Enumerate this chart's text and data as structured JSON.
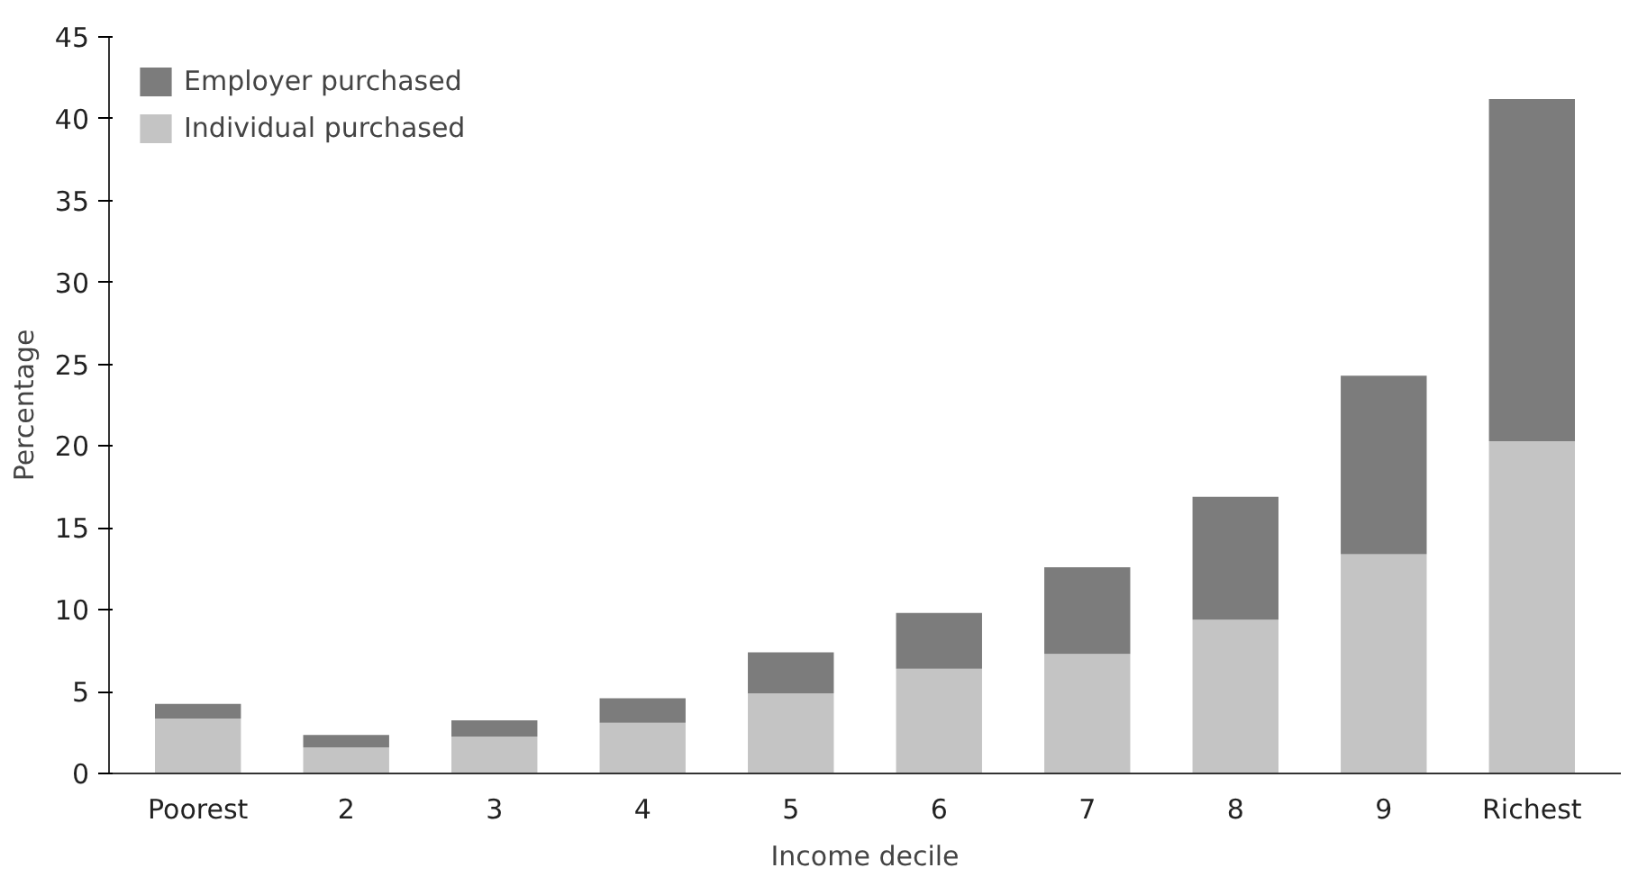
{
  "chart_data": {
    "type": "bar",
    "stacked": true,
    "xlabel": "Income decile",
    "ylabel": "Percentage",
    "categories": [
      "Poorest",
      "2",
      "3",
      "4",
      "5",
      "6",
      "7",
      "8",
      "9",
      "Richest"
    ],
    "series": [
      {
        "name": "Individual purchased",
        "color": "#c4c4c4",
        "values": [
          3.35,
          1.6,
          2.25,
          3.1,
          4.9,
          6.4,
          7.3,
          9.4,
          13.4,
          20.3
        ]
      },
      {
        "name": "Employer purchased",
        "color": "#7c7c7c",
        "values": [
          0.9,
          0.75,
          1.0,
          1.5,
          2.5,
          3.4,
          5.3,
          7.5,
          10.9,
          20.9
        ]
      }
    ],
    "ylim": [
      0,
      45
    ],
    "yticks": [
      0,
      5,
      10,
      15,
      20,
      25,
      30,
      35,
      40,
      45
    ],
    "grid": false,
    "legend": "top left"
  }
}
